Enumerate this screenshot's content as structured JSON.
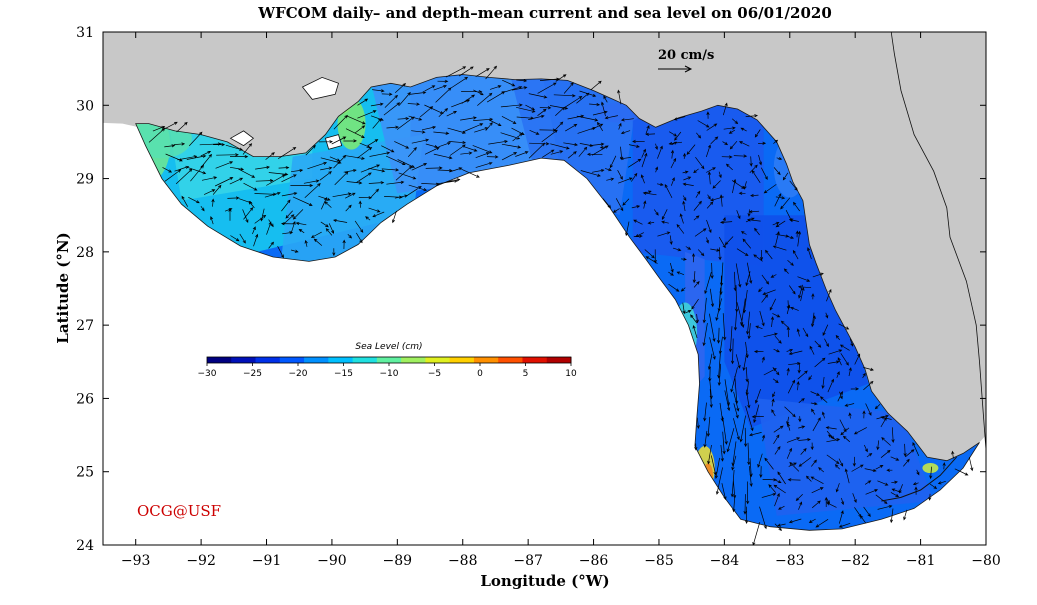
{
  "title": "WFCOM daily– and depth–mean current and sea level on 06/01/2020",
  "credit": "OCG@USF",
  "xaxis": {
    "label": "Longitude (°W)",
    "range": [
      -93.5,
      -80
    ],
    "ticks": [
      -93,
      -92,
      -91,
      -90,
      -89,
      -88,
      -87,
      -86,
      -85,
      -84,
      -83,
      -82,
      -81,
      -80
    ],
    "tick_labels": [
      "−93",
      "−92",
      "−91",
      "−90",
      "−89",
      "−88",
      "−87",
      "−86",
      "−85",
      "−84",
      "−83",
      "−82",
      "−81",
      "−80"
    ]
  },
  "yaxis": {
    "label": "Latitude (°N)",
    "range": [
      24,
      31
    ],
    "ticks": [
      24,
      25,
      26,
      27,
      28,
      29,
      30,
      31
    ],
    "tick_labels": [
      "24",
      "25",
      "26",
      "27",
      "28",
      "29",
      "30",
      "31"
    ]
  },
  "scale_vector": {
    "label": "20 cm/s",
    "value_cm_s": 20
  },
  "colorbar": {
    "title": "Sea Level (cm)",
    "min": -30,
    "max": 10,
    "ticks": [
      -30,
      -25,
      -20,
      -15,
      -10,
      -5,
      0,
      5,
      10
    ],
    "tick_labels": [
      "−30",
      "−25",
      "−20",
      "−15",
      "−10",
      "−5",
      "0",
      "5",
      "10"
    ],
    "colors": [
      "#000080",
      "#0010b8",
      "#0030e8",
      "#0058ff",
      "#0090ff",
      "#00c0ff",
      "#20e0e0",
      "#60f0a0",
      "#a0f060",
      "#e0f020",
      "#ffd000",
      "#ff9000",
      "#ff5000",
      "#e01000",
      "#b00000"
    ]
  },
  "colors": {
    "land": "#c8c8c8",
    "ocean_blank": "#ffffff",
    "credit": "#cc0000",
    "vectors": "#000000"
  }
}
